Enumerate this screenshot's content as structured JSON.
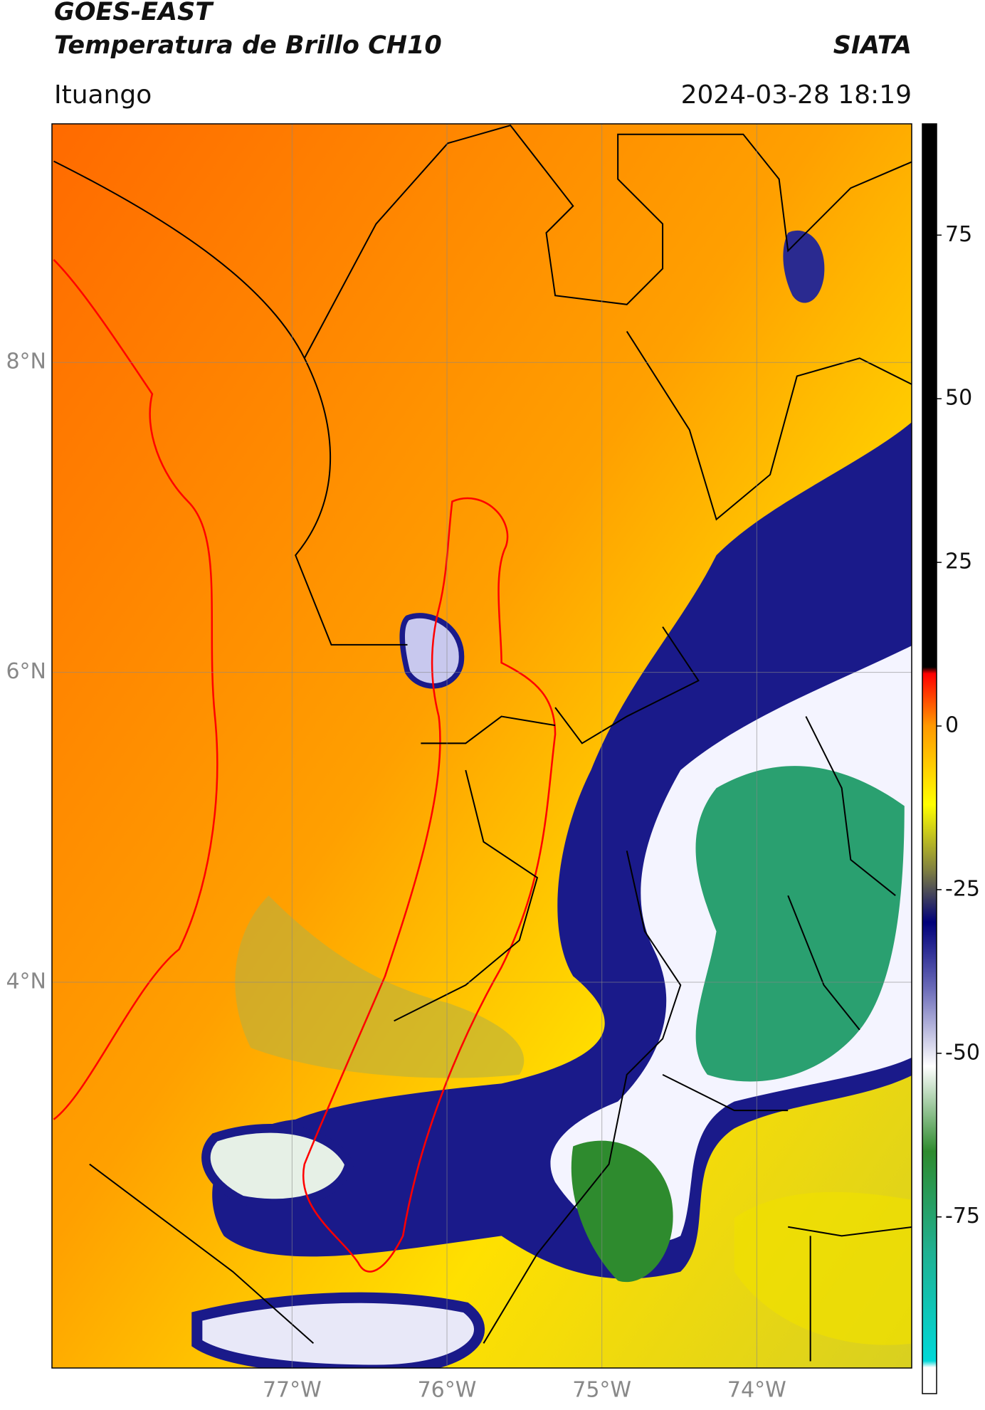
{
  "chart_data": {
    "type": "map",
    "title": "GOES-EAST",
    "subtitle": "Temperatura de Brillo CH10",
    "source": "SIATA",
    "location": "Ituango",
    "datetime": "2024-03-28 18:19",
    "xlim": [
      -78.55,
      -73.0
    ],
    "ylim": [
      1.51,
      9.54
    ],
    "xticks": [
      {
        "value": -77,
        "label": "77°W"
      },
      {
        "value": -76,
        "label": "76°W"
      },
      {
        "value": -75,
        "label": "75°W"
      },
      {
        "value": -74,
        "label": "74°W"
      }
    ],
    "yticks": [
      {
        "value": 4,
        "label": "4°N"
      },
      {
        "value": 6,
        "label": "6°N"
      },
      {
        "value": 8,
        "label": "8°N"
      }
    ],
    "grid": true,
    "colorbar": {
      "lim": [
        -102,
        92
      ],
      "ticks": [
        -75,
        -50,
        -25,
        0,
        25,
        50,
        75
      ],
      "stops": [
        {
          "value": -102,
          "color": "#ffffff"
        },
        {
          "value": -98,
          "color": "#ffffff"
        },
        {
          "value": -97,
          "color": "#00d8d8"
        },
        {
          "value": -80,
          "color": "#20b090"
        },
        {
          "value": -65,
          "color": "#2e8b2e"
        },
        {
          "value": -52,
          "color": "#ffffff"
        },
        {
          "value": -40,
          "color": "#6a6ab8"
        },
        {
          "value": -30,
          "color": "#00007a"
        },
        {
          "value": -22,
          "color": "#808040"
        },
        {
          "value": -12,
          "color": "#ffff00"
        },
        {
          "value": 0,
          "color": "#ff9900"
        },
        {
          "value": 8,
          "color": "#ff0000"
        },
        {
          "value": 9,
          "color": "#000000"
        },
        {
          "value": 92,
          "color": "#000000"
        }
      ]
    }
  }
}
